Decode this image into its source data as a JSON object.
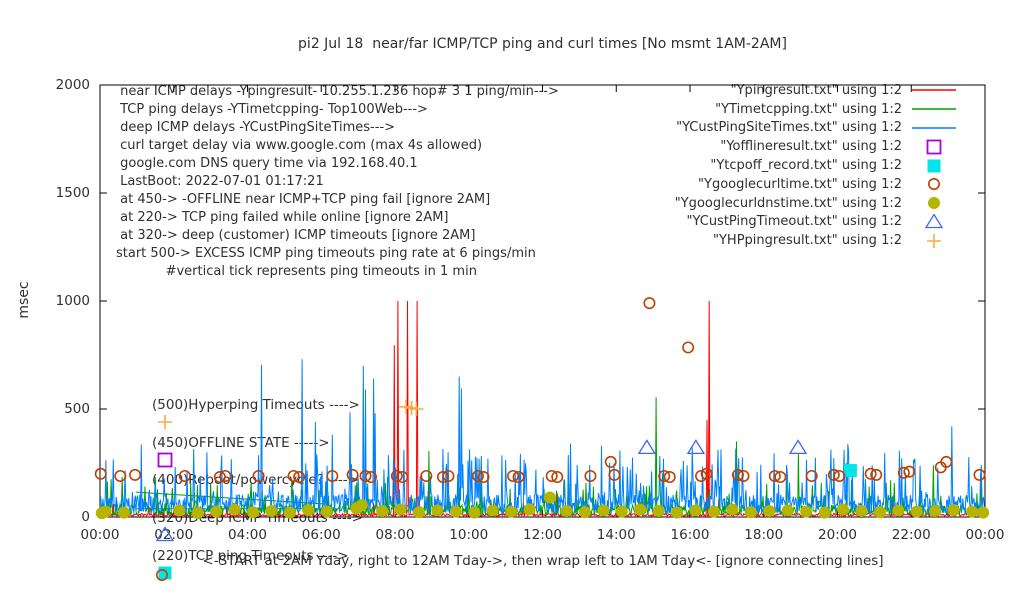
{
  "title": "pi2 Jul 18  near/far ICMP/TCP ping and curl times [No msmt 1AM-2AM]",
  "colors": {
    "red": "#ff0000",
    "green": "#00a000",
    "blue": "#0080ff",
    "magenta": "#b000d8",
    "cyan": "#00e6e6",
    "darkorange": "#c04000",
    "olive": "#b5b500",
    "royalblue": "#4169e1",
    "orange": "#ffa843",
    "axis": "#000000",
    "text": "#303030"
  },
  "info_lines": [
    " near ICMP delays -Ypingresult- 10.255.1.236 hop# 3 1 ping/min--->",
    " TCP ping delays -YTimetcpping- Top100Web--->",
    " deep ICMP delays -YCustPingSiteTimes--->",
    " curl target delay via www.google.com (max 4s allowed)",
    " google.com DNS query time via 192.168.40.1",
    " LastBoot: 2022-07-01 01:17:21",
    " at 450-> -OFFLINE near ICMP+TCP ping fail [ignore 2AM]",
    " at 220-> TCP ping failed while online [ignore 2AM]",
    " at 320-> deep (customer) ICMP timeouts [ignore 2AM]",
    "start 500-> EXCESS ICMP ping timeouts ping rate at 6 pings/min",
    "            #vertical tick represents ping timeouts in 1 min"
  ],
  "callouts": [
    {
      "key": "plus",
      "color_key": "orange",
      "text": "(500)Hyperping Timeouts ---->"
    },
    {
      "key": "open-square",
      "color_key": "magenta",
      "text": "(450)OFFLINE STATE ----->"
    },
    {
      "key": "none",
      "color_key": "text",
      "text": "(400)Reboot/powercycle? ---->"
    },
    {
      "key": "open-triangle",
      "color_key": "royalblue",
      "text": "(320)Deep ICMP Timeouts ---->"
    },
    {
      "key": "tcp-key",
      "color_key": "cyan",
      "text": "(220)TCP ping Timeouts ---->"
    }
  ],
  "y_axis": {
    "label": "msec",
    "tick_labels": [
      "0",
      "500",
      "1000",
      "1500",
      "2000"
    ],
    "tick_values": [
      0,
      500,
      1000,
      1500,
      2000
    ]
  },
  "x_axis": {
    "tick_labels": [
      "00:00",
      "02:00",
      "04:00",
      "06:00",
      "08:00",
      "10:00",
      "12:00",
      "14:00",
      "16:00",
      "18:00",
      "20:00",
      "22:00",
      "00:00"
    ],
    "tick_hours": [
      0,
      2,
      4,
      6,
      8,
      10,
      12,
      14,
      16,
      18,
      20,
      22,
      24
    ],
    "caption": "<-START at 2AM Yday, right to 12AM Tday->, then wrap left to 1AM Tday<- [ignore connecting lines]"
  },
  "chart_data": {
    "type": "line",
    "title": "pi2 Jul 18  near/far ICMP/TCP ping and curl times [No msmt 1AM-2AM]",
    "xlabel": "<-START at 2AM Yday, right to 12AM Tday->, then wrap left to 1AM Tday<- [ignore connecting lines]",
    "ylabel": "msec",
    "x_range_hours": [
      0,
      24
    ],
    "ylim": [
      0,
      2000
    ],
    "grid": false,
    "legend_position": "top-right",
    "series": [
      {
        "name": "Ypingresult",
        "legend_label": "\"Ypingresult.txt\" using 1:2",
        "style": "line",
        "color_key": "red",
        "noise": {
          "base": 10,
          "jitter": 6,
          "spike_prob": 0.012,
          "spike_max": 90,
          "seed": 11
        },
        "spikes": [
          [
            0.35,
            60
          ],
          [
            7.97,
            795
          ],
          [
            8.08,
            1000
          ],
          [
            8.33,
            1000
          ],
          [
            8.6,
            1000
          ],
          [
            8.9,
            120
          ],
          [
            12.4,
            110
          ],
          [
            16.45,
            450
          ],
          [
            16.52,
            1000
          ],
          [
            21.5,
            95
          ]
        ]
      },
      {
        "name": "YTimetcpping",
        "legend_label": "\"YTimetcpping.txt\" using 1:2",
        "style": "line",
        "color_key": "green",
        "noise": {
          "base": 32,
          "jitter": 24,
          "spike_prob": 0.12,
          "spike_max": 140,
          "seed": 22
        },
        "spikes": [
          [
            0.6,
            185
          ],
          [
            2.45,
            160
          ],
          [
            8.92,
            305
          ],
          [
            15.07,
            555
          ],
          [
            15.25,
            205
          ],
          [
            17.25,
            350
          ],
          [
            18.93,
            295
          ],
          [
            22.6,
            240
          ],
          [
            23.9,
            200
          ]
        ]
      },
      {
        "name": "YCustPingSiteTimes",
        "legend_label": "\"YCustPingSiteTimes.txt\" using 1:2",
        "style": "line",
        "color_key": "blue",
        "noise": {
          "base": 58,
          "jitter": 45,
          "spike_prob": 0.16,
          "spike_max": 250,
          "seed": 33
        },
        "spikes": [
          [
            2.9,
            300
          ],
          [
            3.3,
            285
          ],
          [
            4.37,
            705
          ],
          [
            5.47,
            730
          ],
          [
            5.83,
            440
          ],
          [
            6.3,
            380
          ],
          [
            6.78,
            485
          ],
          [
            7.13,
            700
          ],
          [
            7.19,
            590
          ],
          [
            7.41,
            640
          ],
          [
            7.46,
            480
          ],
          [
            9.74,
            650
          ],
          [
            9.8,
            595
          ],
          [
            10.9,
            285
          ],
          [
            11.5,
            265
          ],
          [
            12.75,
            340
          ],
          [
            13.6,
            330
          ],
          [
            19.4,
            275
          ],
          [
            20.3,
            300
          ],
          [
            23.1,
            420
          ]
        ]
      },
      {
        "name": "Yofflineresult",
        "legend_label": "\"Yofflineresult.txt\" using 1:2",
        "style": "marker",
        "marker": "open-square",
        "color_key": "magenta",
        "points": []
      },
      {
        "name": "Ytcpoff_record",
        "legend_label": "\"Ytcpoff_record.txt\" using 1:2",
        "style": "marker",
        "marker": "filled-square",
        "color_key": "cyan",
        "points": [
          [
            20.35,
            215
          ]
        ]
      },
      {
        "name": "Ygooglecurltime",
        "legend_label": "\"Ygooglecurltime.txt\" using 1:2",
        "style": "marker",
        "marker": "open-circle",
        "color_key": "darkorange",
        "points": [
          [
            0.02,
            200
          ],
          [
            0.55,
            190
          ],
          [
            0.95,
            195
          ],
          [
            2.3,
            190
          ],
          [
            3.25,
            185
          ],
          [
            3.4,
            190
          ],
          [
            4.3,
            190
          ],
          [
            5.25,
            190
          ],
          [
            5.4,
            185
          ],
          [
            6.3,
            190
          ],
          [
            6.85,
            195
          ],
          [
            7.2,
            190
          ],
          [
            7.35,
            185
          ],
          [
            8.05,
            190
          ],
          [
            8.2,
            185
          ],
          [
            8.85,
            190
          ],
          [
            9.3,
            185
          ],
          [
            9.45,
            190
          ],
          [
            10.25,
            190
          ],
          [
            10.4,
            185
          ],
          [
            11.2,
            190
          ],
          [
            11.35,
            185
          ],
          [
            12.25,
            190
          ],
          [
            12.4,
            185
          ],
          [
            13.3,
            190
          ],
          [
            13.85,
            255
          ],
          [
            13.95,
            195
          ],
          [
            14.9,
            990
          ],
          [
            15.3,
            190
          ],
          [
            15.45,
            185
          ],
          [
            15.95,
            785
          ],
          [
            16.3,
            190
          ],
          [
            16.45,
            200
          ],
          [
            17.3,
            195
          ],
          [
            17.45,
            190
          ],
          [
            18.3,
            190
          ],
          [
            18.45,
            185
          ],
          [
            19.3,
            190
          ],
          [
            19.9,
            195
          ],
          [
            20.05,
            190
          ],
          [
            20.9,
            200
          ],
          [
            21.05,
            195
          ],
          [
            21.8,
            205
          ],
          [
            21.95,
            210
          ],
          [
            22.8,
            230
          ],
          [
            22.95,
            255
          ],
          [
            23.85,
            195
          ]
        ]
      },
      {
        "name": "Ygooglecurldnstime",
        "legend_label": "\"Ygooglecurldnstime.txt\" using 1:2",
        "style": "marker",
        "marker": "filled-circle",
        "color_key": "olive",
        "points": [
          [
            0.05,
            18
          ],
          [
            0.15,
            25
          ],
          [
            0.65,
            20
          ],
          [
            2.15,
            30
          ],
          [
            2.65,
            18
          ],
          [
            3.15,
            25
          ],
          [
            3.65,
            35
          ],
          [
            4.15,
            22
          ],
          [
            4.65,
            28
          ],
          [
            5.15,
            20
          ],
          [
            5.65,
            32
          ],
          [
            6.15,
            25
          ],
          [
            6.95,
            40
          ],
          [
            7.1,
            55
          ],
          [
            7.65,
            28
          ],
          [
            8.15,
            35
          ],
          [
            8.65,
            22
          ],
          [
            9.15,
            30
          ],
          [
            9.65,
            25
          ],
          [
            10.15,
            20
          ],
          [
            10.65,
            30
          ],
          [
            11.15,
            25
          ],
          [
            11.65,
            35
          ],
          [
            12.2,
            90
          ],
          [
            12.65,
            28
          ],
          [
            13.15,
            22
          ],
          [
            13.65,
            30
          ],
          [
            14.15,
            25
          ],
          [
            14.65,
            35
          ],
          [
            15.15,
            28
          ],
          [
            15.65,
            20
          ],
          [
            16.15,
            30
          ],
          [
            16.65,
            25
          ],
          [
            17.15,
            35
          ],
          [
            17.65,
            22
          ],
          [
            18.15,
            28
          ],
          [
            18.65,
            30
          ],
          [
            19.15,
            25
          ],
          [
            19.65,
            20
          ],
          [
            20.15,
            35
          ],
          [
            20.65,
            28
          ],
          [
            21.15,
            22
          ],
          [
            21.65,
            30
          ],
          [
            22.15,
            25
          ],
          [
            22.65,
            28
          ],
          [
            23.15,
            32
          ],
          [
            23.65,
            25
          ],
          [
            23.95,
            20
          ]
        ]
      },
      {
        "name": "YCustPingTimeout",
        "legend_label": "\"YCustPingTimeout.txt\" using 1:2",
        "style": "marker",
        "marker": "open-triangle",
        "color_key": "royalblue",
        "points": [
          [
            14.83,
            320
          ],
          [
            16.16,
            320
          ],
          [
            18.93,
            320
          ]
        ]
      },
      {
        "name": "YHPpingresult",
        "legend_label": "\"YHPpingresult.txt\" using 1:2",
        "style": "marker",
        "marker": "plus",
        "color_key": "orange",
        "points": [
          [
            8.3,
            510
          ],
          [
            8.45,
            505
          ],
          [
            8.58,
            500
          ]
        ]
      }
    ],
    "connecting_line_artifacts": [
      {
        "color_key": "green",
        "from": [
          0.97,
          115
        ],
        "to": [
          6.1,
          60
        ]
      },
      {
        "color_key": "blue",
        "from": [
          0.97,
          38
        ],
        "to": [
          6.1,
          38
        ]
      }
    ]
  }
}
